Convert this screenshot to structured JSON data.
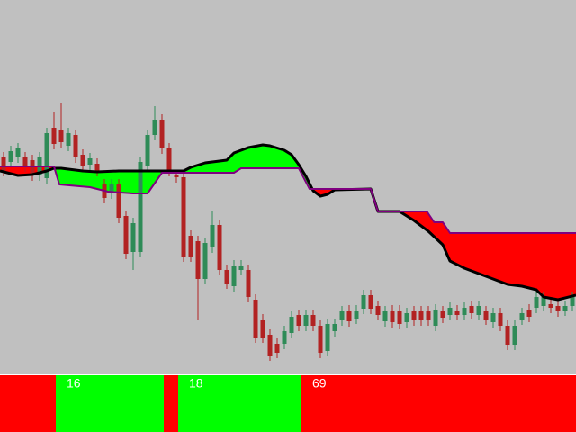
{
  "chart_data": {
    "type": "candlestick",
    "xlim": [
      -0.5,
      79.5
    ],
    "ylim": [
      0,
      415
    ],
    "up_color": "#2e8b57",
    "down_color": "#b22222",
    "background": "#c0c0c0",
    "open": [
      240,
      235,
      240,
      240,
      237,
      220,
      217,
      273,
      270,
      253,
      265,
      243,
      232,
      233,
      210,
      200,
      210,
      175,
      135,
      135,
      230,
      265,
      282,
      250,
      220,
      218,
      153,
      147,
      105,
      140,
      165,
      115,
      97,
      115,
      115,
      82,
      60,
      43,
      33,
      33,
      45,
      65,
      53,
      65,
      53,
      25,
      47,
      59,
      70,
      61,
      72,
      87,
      75,
      58,
      70,
      70,
      57,
      69,
      69,
      69,
      53,
      69,
      65,
      70,
      65,
      75,
      65,
      69,
      57,
      67,
      53,
      32,
      60,
      71,
      73,
      75,
      77,
      75,
      70,
      75
    ],
    "high": [
      246,
      253,
      256,
      246,
      243,
      246,
      273,
      290,
      300,
      273,
      271,
      249,
      245,
      239,
      216,
      216,
      216,
      181,
      173,
      241,
      271,
      297,
      288,
      256,
      226,
      224,
      159,
      153,
      151,
      180,
      171,
      121,
      126,
      126,
      121,
      88,
      66,
      49,
      39,
      53,
      69,
      71,
      71,
      71,
      59,
      61,
      61,
      75,
      76,
      76,
      93,
      93,
      81,
      75,
      76,
      76,
      73,
      75,
      75,
      75,
      77,
      75,
      79,
      76,
      79,
      81,
      81,
      75,
      73,
      73,
      59,
      59,
      73,
      77,
      91,
      91,
      83,
      81,
      81,
      91
    ],
    "low": [
      219,
      229,
      234,
      224,
      214,
      214,
      211,
      249,
      251,
      247,
      234,
      224,
      226,
      219,
      189,
      194,
      167,
      127,
      115,
      129,
      224,
      259,
      244,
      219,
      212,
      124,
      124,
      60,
      99,
      134,
      109,
      94,
      91,
      109,
      79,
      34,
      34,
      14,
      17,
      27,
      39,
      47,
      47,
      47,
      17,
      19,
      41,
      53,
      52,
      55,
      66,
      66,
      59,
      52,
      51,
      49,
      51,
      53,
      53,
      53,
      47,
      56,
      59,
      59,
      59,
      61,
      59,
      54,
      51,
      47,
      26,
      26,
      54,
      57,
      67,
      69,
      67,
      63,
      64,
      69
    ],
    "close": [
      225,
      247,
      250,
      230,
      220,
      240,
      267,
      255,
      257,
      267,
      240,
      230,
      239,
      225,
      195,
      210,
      173,
      133,
      167,
      235,
      265,
      282,
      250,
      225,
      218,
      130,
      130,
      105,
      145,
      165,
      115,
      100,
      120,
      120,
      85,
      40,
      40,
      20,
      23,
      47,
      63,
      53,
      65,
      53,
      23,
      55,
      55,
      69,
      58,
      70,
      87,
      72,
      65,
      69,
      57,
      55,
      67,
      59,
      59,
      59,
      71,
      62,
      73,
      65,
      73,
      67,
      75,
      60,
      67,
      53,
      32,
      53,
      67,
      63,
      85,
      85,
      73,
      69,
      75,
      85
    ],
    "series": [
      {
        "color": "#000000",
        "x": [
          -0.5,
          1,
          2,
          4,
          6,
          7,
          8,
          11,
          13,
          16,
          19,
          22,
          24,
          25,
          26,
          28,
          31,
          32,
          34,
          36,
          37,
          39,
          40,
          41,
          42,
          43,
          44,
          45,
          46,
          51,
          52,
          55,
          57,
          59,
          61,
          62,
          64,
          68,
          70,
          72,
          74,
          75,
          77,
          79.5
        ],
        "values": [
          225,
          222,
          220,
          221,
          225,
          228,
          228,
          225,
          224,
          225,
          225,
          225,
          225,
          225,
          229,
          234,
          237,
          245,
          251,
          254,
          253,
          248,
          243,
          232,
          219,
          203,
          197,
          199,
          204,
          205,
          180,
          180,
          170,
          158,
          143,
          125,
          117,
          105,
          99,
          97,
          93,
          85,
          82,
          87
        ]
      },
      {
        "color": "#800080",
        "x": [
          -0.5,
          7,
          7.75,
          12,
          14.5,
          18,
          20,
          22,
          25,
          32,
          33,
          41,
          42.5,
          51,
          52,
          58.8,
          59.8,
          61,
          62,
          79.5
        ],
        "values": [
          230,
          230,
          210,
          207,
          202,
          200,
          200,
          223,
          223,
          223,
          228,
          228,
          205,
          205,
          180,
          180,
          168,
          168,
          156,
          156
        ]
      }
    ],
    "cloud_up_color": "#00ff00",
    "cloud_down_color": "#ff0000"
  },
  "indicator_bar": {
    "segments": [
      {
        "color": "#ff0000"
      },
      {
        "color": "#00ff00",
        "label": "16"
      },
      {
        "color": "#ff0000"
      },
      {
        "color": "#00ff00",
        "label": "18"
      },
      {
        "color": "#ff0000",
        "label": "69"
      }
    ]
  }
}
